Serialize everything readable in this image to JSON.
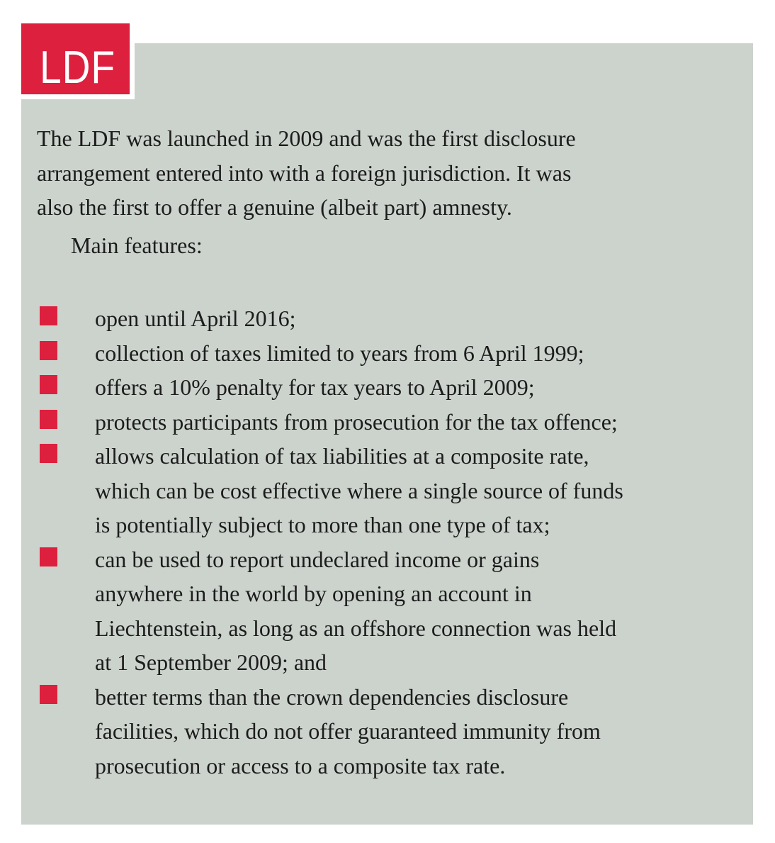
{
  "panel": {
    "tag_label": "LDF",
    "colors": {
      "accent_red": "#dc203e",
      "panel_background": "#ccd3cd",
      "body_text": "#1c1c1c",
      "tag_text": "#ffffff"
    },
    "intro_lines": [
      "The LDF was launched in 2009 and was the first disclosure",
      "arrangement entered into with a foreign jurisdiction. It was",
      "also the first to offer a genuine (albeit part) amnesty."
    ],
    "features_heading": "Main features:",
    "features": [
      {
        "lines": [
          "open until April 2016;"
        ]
      },
      {
        "lines": [
          "collection of taxes limited to years from 6 April 1999;"
        ]
      },
      {
        "lines": [
          "offers a 10% penalty for tax years to April 2009;"
        ]
      },
      {
        "lines": [
          "protects participants from prosecution for the tax offence;"
        ]
      },
      {
        "lines": [
          "allows calculation of tax liabilities at a composite rate,",
          "which can be cost effective where a single source of funds",
          "is potentially subject to more than one type of tax;"
        ]
      },
      {
        "lines": [
          "can be used to report undeclared income or gains",
          "anywhere in the world by opening an account in",
          "Liechtenstein, as long as an offshore connection was held",
          "at 1 September 2009; and"
        ]
      },
      {
        "lines": [
          "better terms than the crown dependencies disclosure",
          "facilities, which do not offer guaranteed immunity from",
          "prosecution or access to a composite tax rate."
        ]
      }
    ]
  }
}
